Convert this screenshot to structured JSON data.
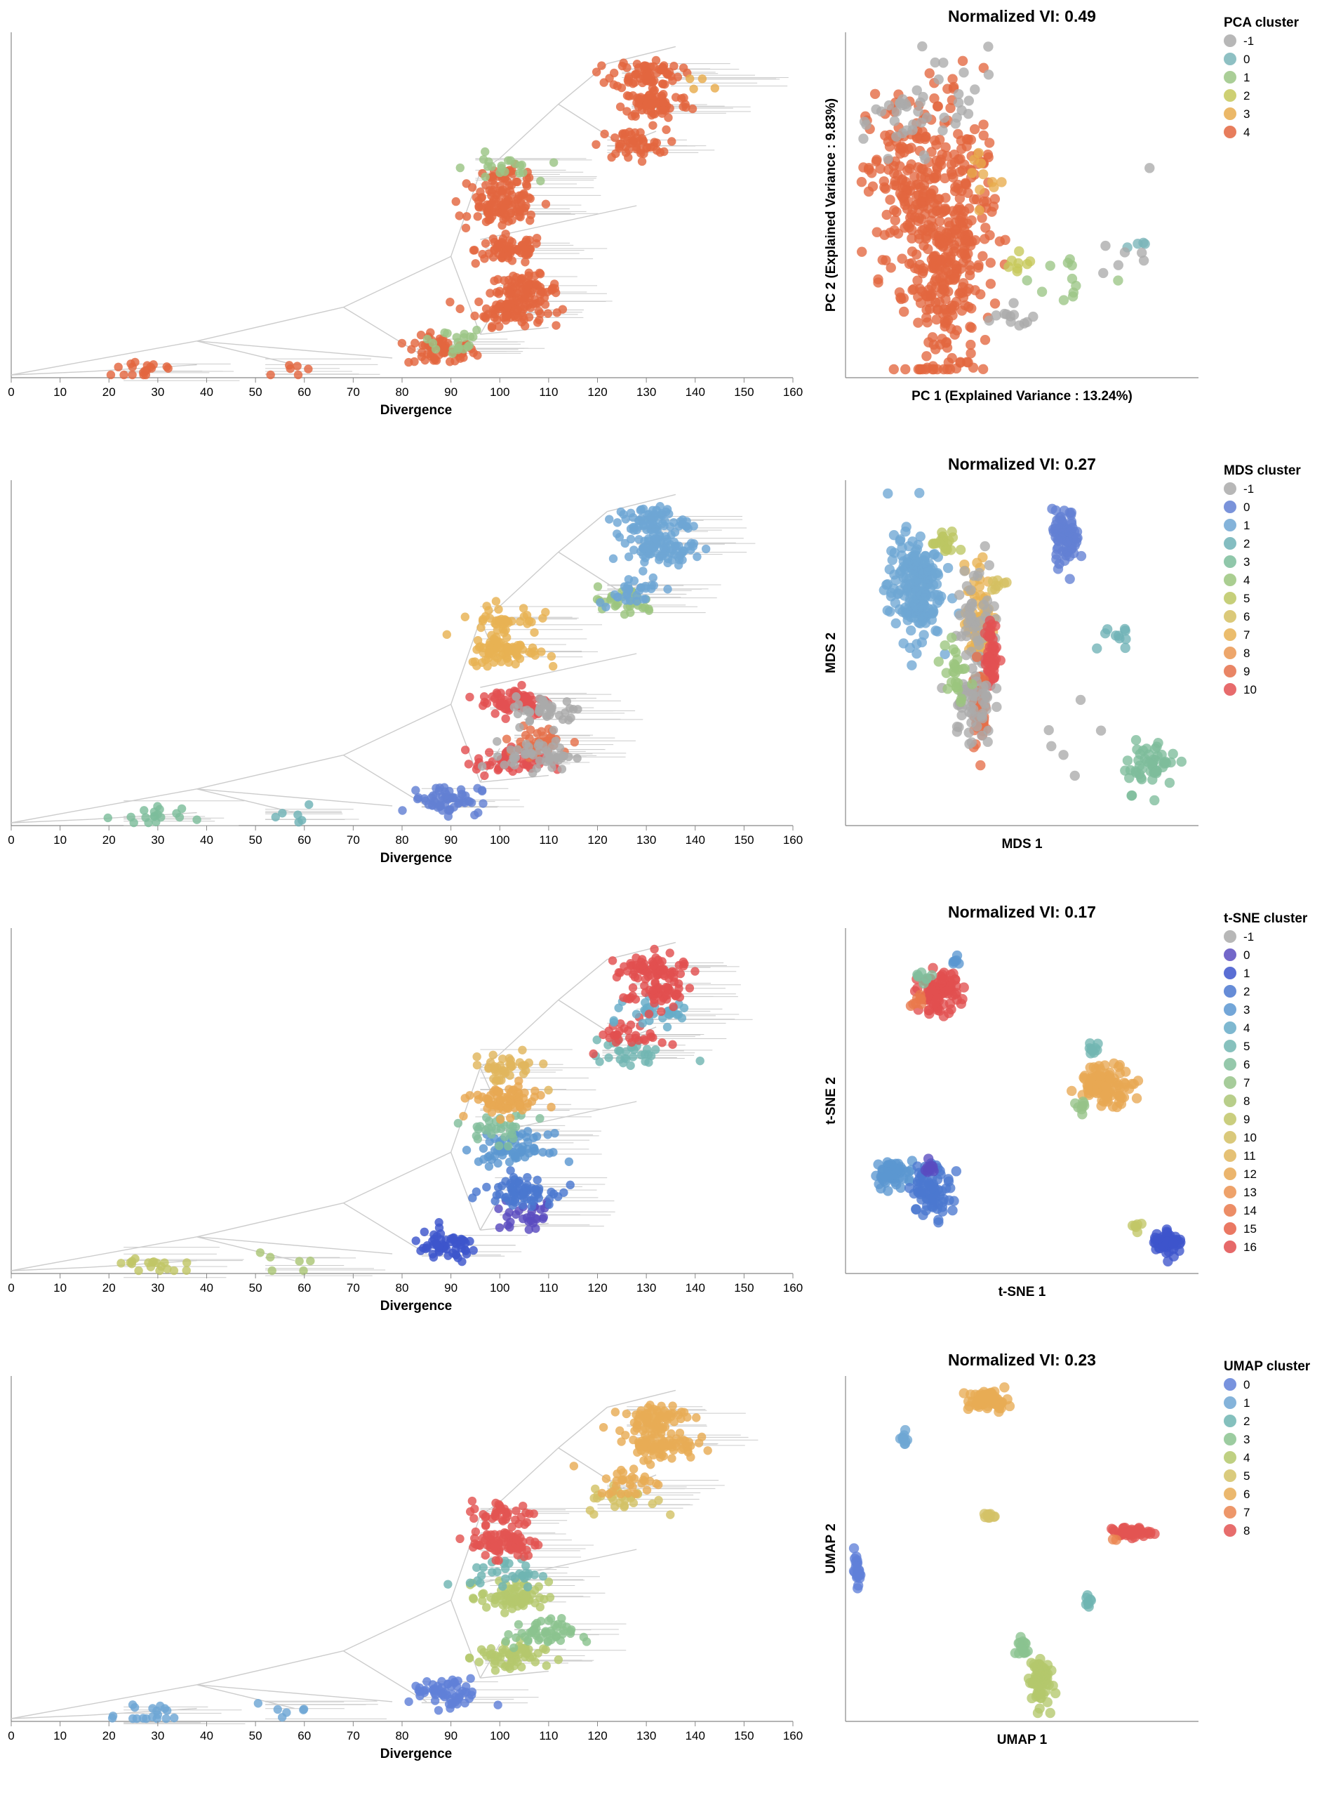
{
  "chart_data": [
    {
      "type": "scatter",
      "subtype": "phylogenetic-tree",
      "xlabel": "Divergence",
      "xlim": [
        0,
        160
      ],
      "xticks": [
        "0",
        "10",
        "20",
        "30",
        "40",
        "50",
        "60",
        "70",
        "80",
        "90",
        "100",
        "110",
        "120",
        "130",
        "140",
        "150",
        "160"
      ],
      "coloring": "PCA cluster",
      "clades": [
        {
          "x": 88,
          "y": 0.07,
          "n": 60,
          "cluster": "4"
        },
        {
          "x": 90,
          "y": 0.1,
          "n": 20,
          "cluster": "1"
        },
        {
          "x": 28,
          "y": 0.015,
          "n": 18,
          "cluster": "4"
        },
        {
          "x": 57,
          "y": 0.025,
          "n": 6,
          "cluster": "4"
        },
        {
          "x": 102,
          "y": 0.19,
          "n": 80,
          "cluster": "4"
        },
        {
          "x": 105,
          "y": 0.25,
          "n": 80,
          "cluster": "4"
        },
        {
          "x": 102,
          "y": 0.37,
          "n": 70,
          "cluster": "4"
        },
        {
          "x": 101,
          "y": 0.49,
          "n": 80,
          "cluster": "4"
        },
        {
          "x": 101,
          "y": 0.57,
          "n": 50,
          "cluster": "4"
        },
        {
          "x": 100,
          "y": 0.61,
          "n": 20,
          "cluster": "1"
        },
        {
          "x": 127,
          "y": 0.68,
          "n": 50,
          "cluster": "4"
        },
        {
          "x": 132,
          "y": 0.8,
          "n": 80,
          "cluster": "4"
        },
        {
          "x": 130,
          "y": 0.89,
          "n": 70,
          "cluster": "4"
        },
        {
          "x": 140,
          "y": 0.86,
          "n": 4,
          "cluster": "3"
        }
      ],
      "embedding_title": "Normalized VI: 0.49",
      "embedding_xlabel": "PC 1 (Explained Variance : 13.24%)",
      "embedding_ylabel": "PC 2 (Explained Variance : 9.83%)",
      "legend_title": "PCA cluster",
      "legend": [
        {
          "label": "-1",
          "color": "#aaaaaa"
        },
        {
          "label": "0",
          "color": "#7ab5b8"
        },
        {
          "label": "1",
          "color": "#9bc585"
        },
        {
          "label": "2",
          "color": "#c6c85a"
        },
        {
          "label": "3",
          "color": "#e8ac4d"
        },
        {
          "label": "4",
          "color": "#e3663f"
        }
      ],
      "embedding": [
        {
          "x": 0.18,
          "y": 0.55,
          "sx": 0.07,
          "sy": 0.15,
          "n": 220,
          "cluster": "4"
        },
        {
          "x": 0.26,
          "y": 0.25,
          "sx": 0.05,
          "sy": 0.15,
          "n": 180,
          "cluster": "4"
        },
        {
          "x": 0.34,
          "y": 0.45,
          "sx": 0.04,
          "sy": 0.18,
          "n": 120,
          "cluster": "4"
        },
        {
          "x": 0.16,
          "y": 0.75,
          "sx": 0.05,
          "sy": 0.08,
          "n": 30,
          "cluster": "-1"
        },
        {
          "x": 0.3,
          "y": 0.8,
          "sx": 0.06,
          "sy": 0.1,
          "n": 15,
          "cluster": "-1"
        },
        {
          "x": 0.38,
          "y": 0.59,
          "sx": 0.02,
          "sy": 0.05,
          "n": 10,
          "cluster": "3"
        },
        {
          "x": 0.46,
          "y": 0.15,
          "sx": 0.05,
          "sy": 0.02,
          "n": 12,
          "cluster": "-1"
        },
        {
          "x": 0.5,
          "y": 0.32,
          "sx": 0.03,
          "sy": 0.03,
          "n": 8,
          "cluster": "2"
        },
        {
          "x": 0.65,
          "y": 0.28,
          "sx": 0.06,
          "sy": 0.05,
          "n": 12,
          "cluster": "1"
        },
        {
          "x": 0.85,
          "y": 0.38,
          "sx": 0.03,
          "sy": 0.01,
          "n": 4,
          "cluster": "0"
        },
        {
          "x": 0.78,
          "y": 0.33,
          "sx": 0.04,
          "sy": 0.03,
          "n": 6,
          "cluster": "-1"
        },
        {
          "x": 0.87,
          "y": 0.62,
          "sx": 0.01,
          "sy": 0.01,
          "n": 1,
          "cluster": "-1"
        }
      ]
    },
    {
      "type": "scatter",
      "subtype": "phylogenetic-tree",
      "xlabel": "Divergence",
      "xlim": [
        0,
        160
      ],
      "xticks": [
        "0",
        "10",
        "20",
        "30",
        "40",
        "50",
        "60",
        "70",
        "80",
        "90",
        "100",
        "110",
        "120",
        "130",
        "140",
        "150",
        "160"
      ],
      "coloring": "MDS cluster",
      "clades": [
        {
          "x": 89,
          "y": 0.07,
          "n": 60,
          "cluster": "0"
        },
        {
          "x": 28,
          "y": 0.015,
          "n": 18,
          "cluster": "3"
        },
        {
          "x": 57,
          "y": 0.025,
          "n": 6,
          "cluster": "2"
        },
        {
          "x": 102,
          "y": 0.18,
          "n": 60,
          "cluster": "10"
        },
        {
          "x": 108,
          "y": 0.24,
          "n": 40,
          "cluster": "9"
        },
        {
          "x": 108,
          "y": 0.2,
          "n": 50,
          "cluster": "-1"
        },
        {
          "x": 103,
          "y": 0.36,
          "n": 70,
          "cluster": "10"
        },
        {
          "x": 110,
          "y": 0.33,
          "n": 40,
          "cluster": "-1"
        },
        {
          "x": 101,
          "y": 0.51,
          "n": 80,
          "cluster": "7"
        },
        {
          "x": 101,
          "y": 0.6,
          "n": 40,
          "cluster": "7"
        },
        {
          "x": 125,
          "y": 0.65,
          "n": 30,
          "cluster": "4"
        },
        {
          "x": 127,
          "y": 0.69,
          "n": 30,
          "cluster": "1"
        },
        {
          "x": 133,
          "y": 0.81,
          "n": 80,
          "cluster": "1"
        },
        {
          "x": 131,
          "y": 0.89,
          "n": 70,
          "cluster": "1"
        }
      ],
      "embedding_title": "Normalized VI: 0.27",
      "embedding_xlabel": "MDS 1",
      "embedding_ylabel": "MDS 2",
      "legend_title": "MDS cluster",
      "legend": [
        {
          "label": "-1",
          "color": "#aaaaaa"
        },
        {
          "label": "0",
          "color": "#6380d3"
        },
        {
          "label": "1",
          "color": "#6ea6d4"
        },
        {
          "label": "2",
          "color": "#6fb2b6"
        },
        {
          "label": "3",
          "color": "#7dbd9b"
        },
        {
          "label": "4",
          "color": "#9bc57e"
        },
        {
          "label": "5",
          "color": "#bcc763"
        },
        {
          "label": "6",
          "color": "#d5c062"
        },
        {
          "label": "7",
          "color": "#e8b253"
        },
        {
          "label": "8",
          "color": "#ea9651"
        },
        {
          "label": "9",
          "color": "#e5704a"
        },
        {
          "label": "10",
          "color": "#e35152"
        }
      ],
      "embedding": [
        {
          "x": 0.18,
          "y": 0.7,
          "sx": 0.04,
          "sy": 0.08,
          "n": 200,
          "cluster": "1"
        },
        {
          "x": 0.27,
          "y": 0.83,
          "sx": 0.02,
          "sy": 0.02,
          "n": 20,
          "cluster": "5"
        },
        {
          "x": 0.37,
          "y": 0.6,
          "sx": 0.02,
          "sy": 0.08,
          "n": 80,
          "cluster": "7"
        },
        {
          "x": 0.37,
          "y": 0.6,
          "sx": 0.03,
          "sy": 0.1,
          "n": 60,
          "cluster": "-1"
        },
        {
          "x": 0.41,
          "y": 0.49,
          "sx": 0.01,
          "sy": 0.05,
          "n": 50,
          "cluster": "10"
        },
        {
          "x": 0.37,
          "y": 0.34,
          "sx": 0.01,
          "sy": 0.06,
          "n": 50,
          "cluster": "9"
        },
        {
          "x": 0.35,
          "y": 0.34,
          "sx": 0.03,
          "sy": 0.06,
          "n": 50,
          "cluster": "-1"
        },
        {
          "x": 0.3,
          "y": 0.44,
          "sx": 0.02,
          "sy": 0.06,
          "n": 25,
          "cluster": "4"
        },
        {
          "x": 0.43,
          "y": 0.72,
          "sx": 0.01,
          "sy": 0.03,
          "n": 8,
          "cluster": "6"
        },
        {
          "x": 0.63,
          "y": 0.85,
          "sx": 0.02,
          "sy": 0.04,
          "n": 80,
          "cluster": "0"
        },
        {
          "x": 0.78,
          "y": 0.54,
          "sx": 0.02,
          "sy": 0.03,
          "n": 10,
          "cluster": "2"
        },
        {
          "x": 0.88,
          "y": 0.16,
          "sx": 0.04,
          "sy": 0.04,
          "n": 50,
          "cluster": "3"
        },
        {
          "x": 0.7,
          "y": 0.28,
          "sx": 0.06,
          "sy": 0.06,
          "n": 6,
          "cluster": "-1"
        }
      ]
    },
    {
      "type": "scatter",
      "subtype": "phylogenetic-tree",
      "xlabel": "Divergence",
      "xlim": [
        0,
        160
      ],
      "xticks": [
        "0",
        "10",
        "20",
        "30",
        "40",
        "50",
        "60",
        "70",
        "80",
        "90",
        "100",
        "110",
        "120",
        "130",
        "140",
        "150",
        "160"
      ],
      "coloring": "t-SNE cluster",
      "clades": [
        {
          "x": 89,
          "y": 0.07,
          "n": 60,
          "cluster": "1"
        },
        {
          "x": 28,
          "y": 0.015,
          "n": 18,
          "cluster": "9"
        },
        {
          "x": 57,
          "y": 0.025,
          "n": 6,
          "cluster": "8"
        },
        {
          "x": 105,
          "y": 0.16,
          "n": 30,
          "cluster": "0"
        },
        {
          "x": 104,
          "y": 0.24,
          "n": 70,
          "cluster": "2"
        },
        {
          "x": 103,
          "y": 0.36,
          "n": 70,
          "cluster": "3"
        },
        {
          "x": 100,
          "y": 0.42,
          "n": 30,
          "cluster": "6"
        },
        {
          "x": 101,
          "y": 0.5,
          "n": 80,
          "cluster": "12"
        },
        {
          "x": 101,
          "y": 0.6,
          "n": 40,
          "cluster": "11"
        },
        {
          "x": 126,
          "y": 0.64,
          "n": 30,
          "cluster": "5"
        },
        {
          "x": 127,
          "y": 0.7,
          "n": 30,
          "cluster": "16"
        },
        {
          "x": 133,
          "y": 0.76,
          "n": 30,
          "cluster": "4"
        },
        {
          "x": 132,
          "y": 0.82,
          "n": 50,
          "cluster": "16"
        },
        {
          "x": 131,
          "y": 0.89,
          "n": 70,
          "cluster": "16"
        }
      ],
      "embedding_title": "Normalized VI: 0.17",
      "embedding_xlabel": "t-SNE 1",
      "embedding_ylabel": "t-SNE 2",
      "legend_title": "t-SNE cluster",
      "legend": [
        {
          "label": "-1",
          "color": "#aaaaaa"
        },
        {
          "label": "0",
          "color": "#5a4cc0"
        },
        {
          "label": "1",
          "color": "#3d55cc"
        },
        {
          "label": "2",
          "color": "#4b78d0"
        },
        {
          "label": "3",
          "color": "#5b97d1"
        },
        {
          "label": "4",
          "color": "#67acc8"
        },
        {
          "label": "5",
          "color": "#72b6b2"
        },
        {
          "label": "6",
          "color": "#82be9c"
        },
        {
          "label": "7",
          "color": "#96c388"
        },
        {
          "label": "8",
          "color": "#abc676"
        },
        {
          "label": "9",
          "color": "#c1c667"
        },
        {
          "label": "10",
          "color": "#d3c064"
        },
        {
          "label": "11",
          "color": "#e0b65d"
        },
        {
          "label": "12",
          "color": "#e8a853"
        },
        {
          "label": "13",
          "color": "#eb9250"
        },
        {
          "label": "14",
          "color": "#e9794b"
        },
        {
          "label": "15",
          "color": "#e66048"
        },
        {
          "label": "16",
          "color": "#e24f4f"
        }
      ],
      "embedding": [
        {
          "x": 0.25,
          "y": 0.83,
          "sx": 0.03,
          "sy": 0.03,
          "n": 100,
          "cluster": "16"
        },
        {
          "x": 0.21,
          "y": 0.87,
          "sx": 0.01,
          "sy": 0.01,
          "n": 8,
          "cluster": "6"
        },
        {
          "x": 0.19,
          "y": 0.8,
          "sx": 0.01,
          "sy": 0.01,
          "n": 8,
          "cluster": "14"
        },
        {
          "x": 0.3,
          "y": 0.92,
          "sx": 0.01,
          "sy": 0.01,
          "n": 6,
          "cluster": "3"
        },
        {
          "x": 0.75,
          "y": 0.55,
          "sx": 0.04,
          "sy": 0.03,
          "n": 100,
          "cluster": "12"
        },
        {
          "x": 0.71,
          "y": 0.66,
          "sx": 0.01,
          "sy": 0.01,
          "n": 10,
          "cluster": "5"
        },
        {
          "x": 0.68,
          "y": 0.48,
          "sx": 0.01,
          "sy": 0.01,
          "n": 8,
          "cluster": "7"
        },
        {
          "x": 0.12,
          "y": 0.28,
          "sx": 0.03,
          "sy": 0.02,
          "n": 50,
          "cluster": "3"
        },
        {
          "x": 0.23,
          "y": 0.23,
          "sx": 0.03,
          "sy": 0.04,
          "n": 80,
          "cluster": "2"
        },
        {
          "x": 0.23,
          "y": 0.3,
          "sx": 0.01,
          "sy": 0.01,
          "n": 10,
          "cluster": "0"
        },
        {
          "x": 0.93,
          "y": 0.07,
          "sx": 0.02,
          "sy": 0.02,
          "n": 60,
          "cluster": "1"
        },
        {
          "x": 0.84,
          "y": 0.11,
          "sx": 0.01,
          "sy": 0.01,
          "n": 6,
          "cluster": "9"
        }
      ]
    },
    {
      "type": "scatter",
      "subtype": "phylogenetic-tree",
      "xlabel": "Divergence",
      "xlim": [
        0,
        160
      ],
      "xticks": [
        "0",
        "10",
        "20",
        "30",
        "40",
        "50",
        "60",
        "70",
        "80",
        "90",
        "100",
        "110",
        "120",
        "130",
        "140",
        "150",
        "160"
      ],
      "coloring": "UMAP cluster",
      "clades": [
        {
          "x": 89,
          "y": 0.07,
          "n": 60,
          "cluster": "0"
        },
        {
          "x": 28,
          "y": 0.015,
          "n": 18,
          "cluster": "1"
        },
        {
          "x": 57,
          "y": 0.025,
          "n": 6,
          "cluster": "1"
        },
        {
          "x": 102,
          "y": 0.18,
          "n": 60,
          "cluster": "4"
        },
        {
          "x": 108,
          "y": 0.25,
          "n": 50,
          "cluster": "3"
        },
        {
          "x": 103,
          "y": 0.36,
          "n": 70,
          "cluster": "4"
        },
        {
          "x": 101,
          "y": 0.43,
          "n": 30,
          "cluster": "2"
        },
        {
          "x": 101,
          "y": 0.52,
          "n": 80,
          "cluster": "8"
        },
        {
          "x": 101,
          "y": 0.6,
          "n": 40,
          "cluster": "8"
        },
        {
          "x": 125,
          "y": 0.65,
          "n": 30,
          "cluster": "5"
        },
        {
          "x": 127,
          "y": 0.7,
          "n": 30,
          "cluster": "6"
        },
        {
          "x": 133,
          "y": 0.81,
          "n": 80,
          "cluster": "6"
        },
        {
          "x": 131,
          "y": 0.89,
          "n": 70,
          "cluster": "6"
        }
      ],
      "embedding_title": "Normalized VI: 0.23",
      "embedding_xlabel": "UMAP 1",
      "embedding_ylabel": "UMAP 2",
      "legend_title": "UMAP cluster",
      "legend": [
        {
          "label": "0",
          "color": "#6080d8"
        },
        {
          "label": "1",
          "color": "#6ea6d4"
        },
        {
          "label": "2",
          "color": "#6fb5b2"
        },
        {
          "label": "3",
          "color": "#8bc38f"
        },
        {
          "label": "4",
          "color": "#b4c86c"
        },
        {
          "label": "5",
          "color": "#d3c266"
        },
        {
          "label": "6",
          "color": "#e8ac55"
        },
        {
          "label": "7",
          "color": "#ea8550"
        },
        {
          "label": "8",
          "color": "#e35452"
        }
      ],
      "embedding": [
        {
          "x": 0.4,
          "y": 0.95,
          "sx": 0.03,
          "sy": 0.015,
          "n": 60,
          "cluster": "6"
        },
        {
          "x": 0.15,
          "y": 0.83,
          "sx": 0.005,
          "sy": 0.015,
          "n": 10,
          "cluster": "1"
        },
        {
          "x": 0.4,
          "y": 0.6,
          "sx": 0.01,
          "sy": 0.005,
          "n": 10,
          "cluster": "5"
        },
        {
          "x": 0.82,
          "y": 0.55,
          "sx": 0.03,
          "sy": 0.008,
          "n": 40,
          "cluster": "8"
        },
        {
          "x": 0.77,
          "y": 0.53,
          "sx": 0.005,
          "sy": 0.005,
          "n": 2,
          "cluster": "7"
        },
        {
          "x": 0.01,
          "y": 0.43,
          "sx": 0.005,
          "sy": 0.02,
          "n": 25,
          "cluster": "0"
        },
        {
          "x": 0.7,
          "y": 0.34,
          "sx": 0.005,
          "sy": 0.01,
          "n": 8,
          "cluster": "2"
        },
        {
          "x": 0.55,
          "y": 0.1,
          "sx": 0.015,
          "sy": 0.04,
          "n": 70,
          "cluster": "4"
        },
        {
          "x": 0.5,
          "y": 0.2,
          "sx": 0.01,
          "sy": 0.02,
          "n": 15,
          "cluster": "3"
        }
      ]
    }
  ]
}
